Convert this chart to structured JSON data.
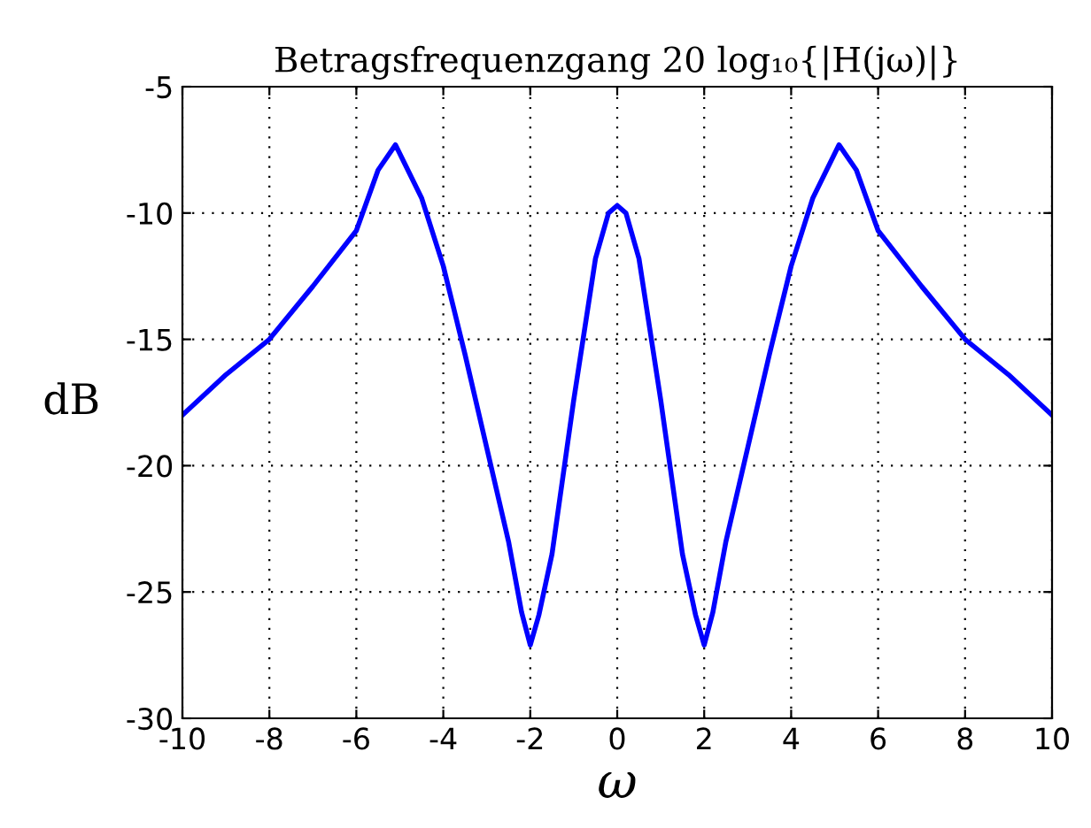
{
  "chart_data": {
    "type": "line",
    "title": "Betragsfrequenzgang 20 log₁₀{|H(jω)|}",
    "xlabel": "ω",
    "ylabel": "dB",
    "series": [
      {
        "color": "#0000ff",
        "x": [
          -10,
          -9,
          -8,
          -7,
          -6,
          -5.5,
          -5.1,
          -4.5,
          -4,
          -3.5,
          -3,
          -2.5,
          -2.2,
          -2,
          -1.8,
          -1.5,
          -1,
          -0.5,
          -0.2,
          0,
          0.2,
          0.5,
          1,
          1.5,
          1.8,
          2,
          2.2,
          2.5,
          3,
          3.5,
          4,
          4.5,
          5.1,
          5.5,
          6,
          7,
          8,
          9,
          10
        ],
        "values": [
          -18,
          -16.4,
          -15,
          -12.9,
          -10.7,
          -8.3,
          -7.3,
          -9.4,
          -12.1,
          -15.6,
          -19.3,
          -23,
          -25.8,
          -27.1,
          -25.9,
          -23.5,
          -17.4,
          -11.8,
          -10,
          -9.7,
          -10,
          -11.8,
          -17.4,
          -23.5,
          -25.9,
          -27.1,
          -25.8,
          -23,
          -19.3,
          -15.6,
          -12.1,
          -9.4,
          -7.3,
          -8.3,
          -10.7,
          -12.9,
          -15,
          -16.4,
          -18
        ]
      }
    ],
    "xlim": [
      -10,
      10
    ],
    "xticks": [
      {
        "value": -10,
        "label": "-10"
      },
      {
        "value": -8,
        "label": "-8"
      },
      {
        "value": -6,
        "label": "-6"
      },
      {
        "value": -4,
        "label": "-4"
      },
      {
        "value": -2,
        "label": "-2"
      },
      0,
      2,
      4,
      6,
      8,
      10
    ],
    "ylim": [
      -30,
      -5
    ],
    "yticks": [
      {
        "value": -30,
        "label": "-30"
      },
      {
        "value": -25,
        "label": "-25"
      },
      {
        "value": -20,
        "label": "-20"
      },
      {
        "value": -15,
        "label": "-15"
      },
      {
        "value": -10,
        "label": "-10"
      },
      {
        "value": -5,
        "label": "-5"
      }
    ],
    "grid": true,
    "line_style": "solid"
  }
}
